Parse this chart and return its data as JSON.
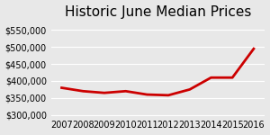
{
  "title": "Historic June Median Prices",
  "years": [
    2007,
    2008,
    2009,
    2010,
    2011,
    2012,
    2013,
    2014,
    2015,
    2016
  ],
  "values": [
    380000,
    370000,
    365000,
    370000,
    360000,
    358000,
    375000,
    410000,
    410000,
    495000
  ],
  "line_color": "#cc0000",
  "line_width": 2.0,
  "background_color": "#e8e8e8",
  "ylim": [
    295000,
    570000
  ],
  "yticks": [
    300000,
    350000,
    400000,
    450000,
    500000,
    550000
  ],
  "title_fontsize": 11,
  "tick_fontsize": 7
}
